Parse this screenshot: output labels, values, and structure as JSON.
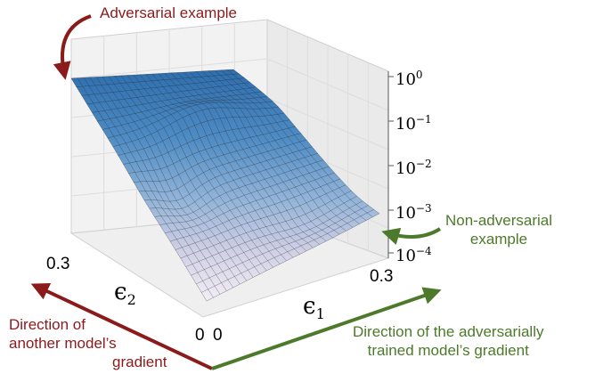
{
  "colors": {
    "red_annotation": "#8b1a1a",
    "green_annotation": "#4d7a2a",
    "surface_top": "#2f6fae",
    "surface_bottom": "#f1eef4",
    "mesh_line": "#222222"
  },
  "annotations": {
    "adversarial_example": "Adversarial example",
    "non_adversarial_line1": "Non-adversarial",
    "non_adversarial_line2": "example",
    "other_model_line1": "Direction of",
    "other_model_line2": "another model’s",
    "other_model_line3": "gradient",
    "adv_trained_line1": "Direction of the adversarially",
    "adv_trained_line2": "trained model’s gradient"
  },
  "axes": {
    "eps1": {
      "symbol": "ϵ",
      "subscript": "1",
      "tick_max": "0.3",
      "tick_min": "0"
    },
    "eps2": {
      "symbol": "ϵ",
      "subscript": "2",
      "tick_max": "0.3",
      "tick_min": "0"
    },
    "z": {
      "scale": "log",
      "ticks": [
        {
          "base": "10",
          "exp": "0"
        },
        {
          "base": "10",
          "exp": "−1"
        },
        {
          "base": "10",
          "exp": "−2"
        },
        {
          "base": "10",
          "exp": "−3"
        },
        {
          "base": "10",
          "exp": "−4"
        }
      ]
    }
  }
}
